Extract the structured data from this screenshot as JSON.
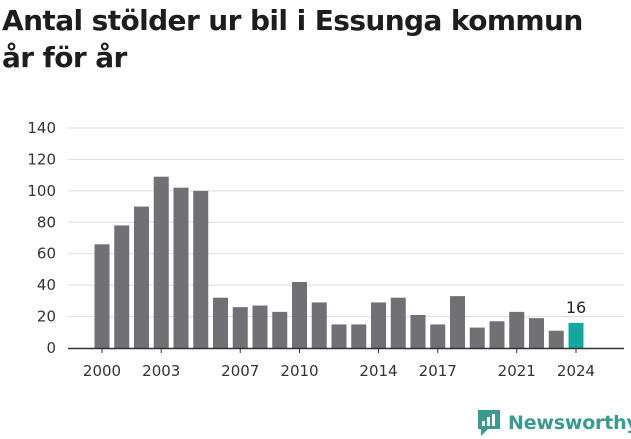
{
  "title_lines": [
    "Antal stölder ur bil i Essunga kommun",
    "år för år"
  ],
  "brand": {
    "name": "Newsworthy",
    "color": "#3a9a8e"
  },
  "chart_data": {
    "type": "bar",
    "title": "Antal stölder ur bil i Essunga kommun år för år",
    "categories": [
      "2000",
      "2001",
      "2002",
      "2003",
      "2004",
      "2005",
      "2006",
      "2007",
      "2008",
      "2009",
      "2010",
      "2011",
      "2012",
      "2013",
      "2014",
      "2015",
      "2016",
      "2017",
      "2018",
      "2019",
      "2020",
      "2021",
      "2022",
      "2023",
      "2024"
    ],
    "values": [
      66,
      78,
      90,
      109,
      102,
      100,
      32,
      26,
      27,
      23,
      42,
      29,
      15,
      15,
      29,
      32,
      21,
      15,
      33,
      13,
      17,
      23,
      19,
      11,
      16
    ],
    "x_tick_labels": [
      "2000",
      "2003",
      "2007",
      "2010",
      "2014",
      "2017",
      "2021",
      "2024"
    ],
    "y_ticks": [
      0,
      20,
      40,
      60,
      80,
      100,
      120,
      140
    ],
    "ylim": [
      0,
      140
    ],
    "xlabel": "",
    "ylabel": "",
    "grid": true,
    "highlight": {
      "category": "2024",
      "value_label": "16"
    },
    "colors": {
      "bar": "#717075",
      "highlight": "#13a89e",
      "grid": "#dddddd",
      "axis": "#333333"
    }
  }
}
